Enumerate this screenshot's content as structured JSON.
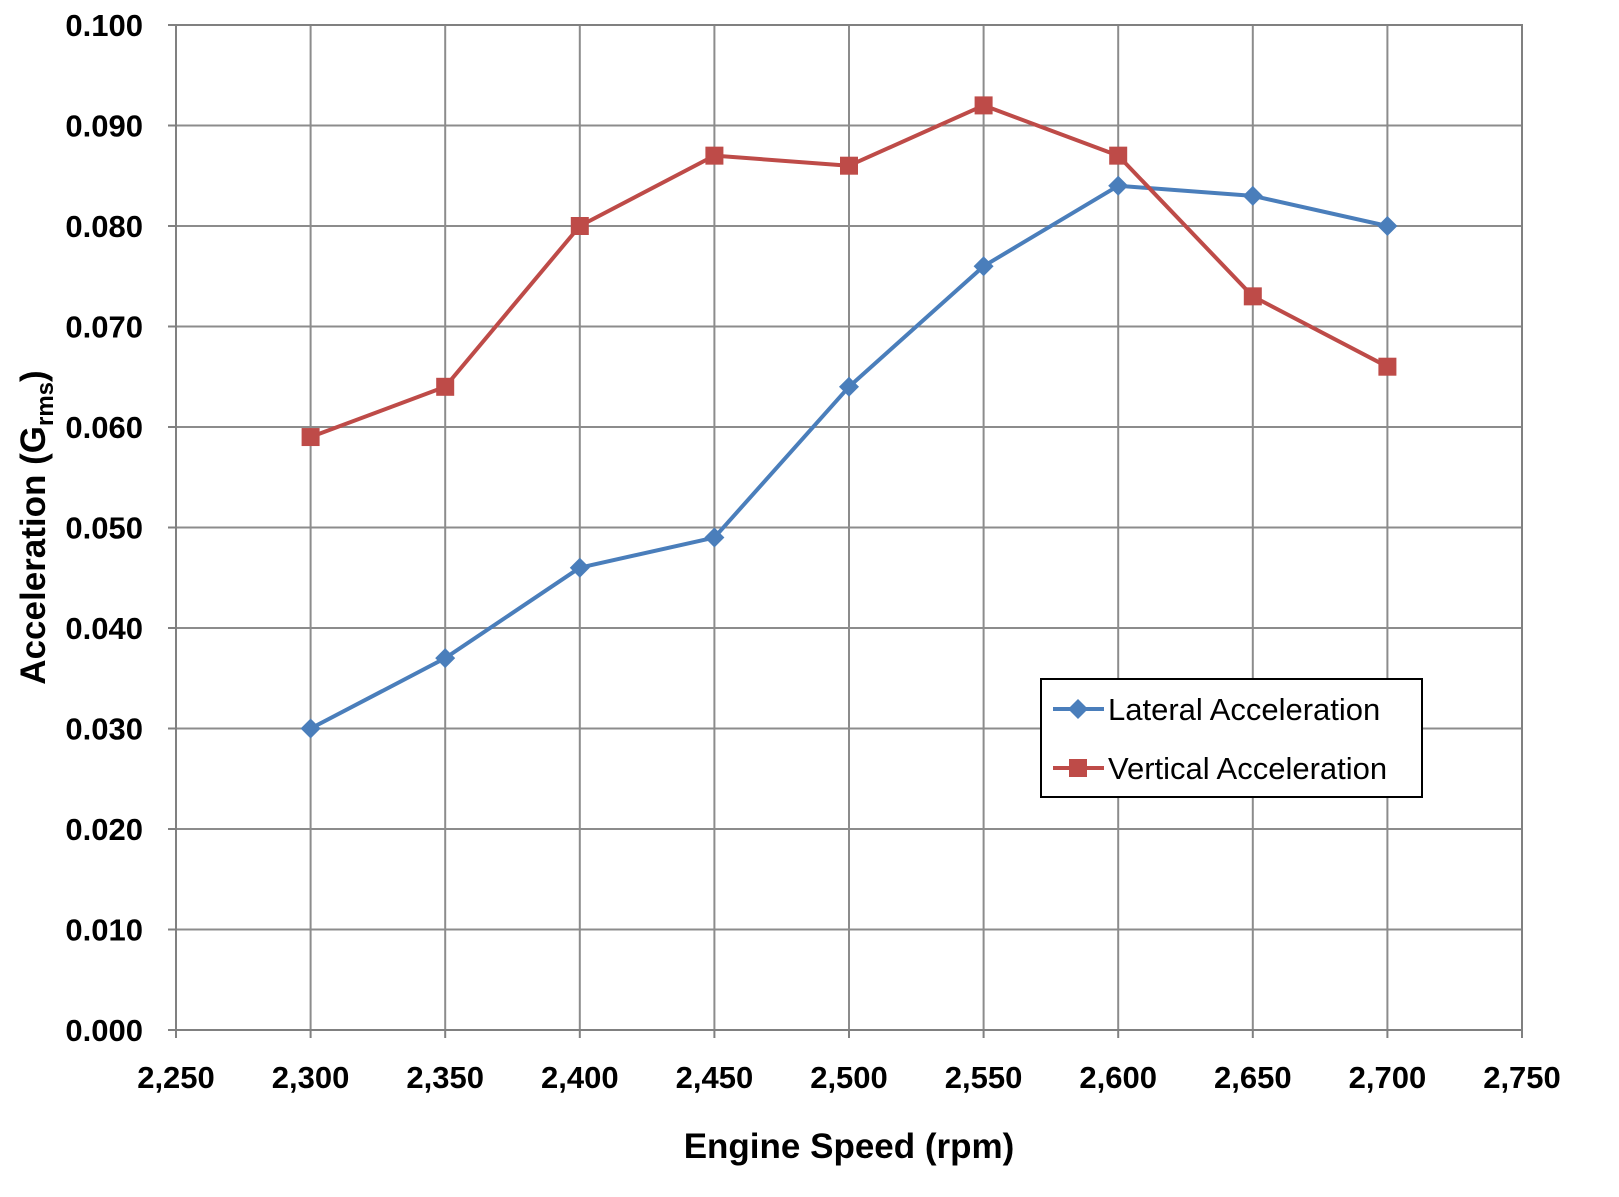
{
  "chart_data": {
    "type": "line",
    "xlabel": "Engine Speed (rpm)",
    "ylabel": {
      "main": "Acceleration (G",
      "sub": "rms",
      "close": ")"
    },
    "xlim": [
      2250,
      2750
    ],
    "ylim": [
      0.0,
      0.1
    ],
    "x_ticks": [
      2250,
      2300,
      2350,
      2400,
      2450,
      2500,
      2550,
      2600,
      2650,
      2700,
      2750
    ],
    "x_tick_labels": [
      "2,250",
      "2,300",
      "2,350",
      "2,400",
      "2,450",
      "2,500",
      "2,550",
      "2,600",
      "2,650",
      "2,700",
      "2,750"
    ],
    "y_ticks": [
      0.0,
      0.01,
      0.02,
      0.03,
      0.04,
      0.05,
      0.06,
      0.07,
      0.08,
      0.09,
      0.1
    ],
    "y_tick_labels": [
      "0.000",
      "0.010",
      "0.020",
      "0.030",
      "0.040",
      "0.050",
      "0.060",
      "0.070",
      "0.080",
      "0.090",
      "0.100"
    ],
    "grid": true,
    "legend_position": "right, lower-middle",
    "series": [
      {
        "name": "Lateral Acceleration",
        "color": "#4a7ebb",
        "marker": "diamond",
        "x": [
          2300,
          2350,
          2400,
          2450,
          2500,
          2550,
          2600,
          2650,
          2700
        ],
        "y": [
          0.03,
          0.037,
          0.046,
          0.049,
          0.064,
          0.076,
          0.084,
          0.083,
          0.08
        ]
      },
      {
        "name": "Vertical Acceleration",
        "color": "#be4b48",
        "marker": "square",
        "x": [
          2300,
          2350,
          2400,
          2450,
          2500,
          2550,
          2600,
          2650,
          2700
        ],
        "y": [
          0.059,
          0.064,
          0.08,
          0.087,
          0.086,
          0.092,
          0.087,
          0.073,
          0.066
        ]
      }
    ]
  }
}
